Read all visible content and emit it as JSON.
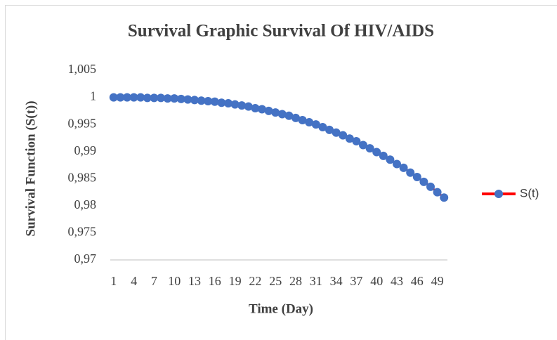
{
  "chart_data": {
    "type": "line",
    "title": "Survival Graphic Survival Of HIV/AIDS",
    "x_label": "Time (Day)",
    "y_label": "Survival Function (S(t))",
    "categories": [
      1,
      null,
      null,
      4,
      null,
      null,
      7,
      null,
      null,
      10,
      null,
      null,
      13,
      null,
      null,
      16,
      null,
      null,
      19,
      null,
      null,
      22,
      null,
      null,
      25,
      null,
      null,
      28,
      null,
      null,
      31,
      null,
      null,
      34,
      null,
      null,
      37,
      null,
      null,
      40,
      null,
      null,
      43,
      null,
      null,
      46,
      null,
      null,
      49,
      null
    ],
    "series": [
      {
        "name": "S(t)",
        "color": "#4472c4",
        "line_color": "#ff0000",
        "values": [
          1.0,
          1.0,
          1.0,
          1.0,
          1.0,
          0.9999,
          0.9999,
          0.9999,
          0.9998,
          0.9998,
          0.9997,
          0.9996,
          0.9995,
          0.9994,
          0.9993,
          0.9992,
          0.999,
          0.9989,
          0.9987,
          0.9985,
          0.9983,
          0.998,
          0.9978,
          0.9975,
          0.9972,
          0.9969,
          0.9966,
          0.9962,
          0.9958,
          0.9954,
          0.995,
          0.9945,
          0.994,
          0.9935,
          0.993,
          0.9924,
          0.9919,
          0.9912,
          0.9906,
          0.9899,
          0.9892,
          0.9885,
          0.9877,
          0.987,
          0.9861,
          0.9853,
          0.9844,
          0.9835,
          0.9825,
          0.9815
        ]
      }
    ],
    "ylim": [
      0.97,
      1.005
    ],
    "yticks": [
      {
        "value": 0.97,
        "label": "0,97"
      },
      {
        "value": 0.975,
        "label": "0,975"
      },
      {
        "value": 0.98,
        "label": "0,98"
      },
      {
        "value": 0.985,
        "label": "0,985"
      },
      {
        "value": 0.99,
        "label": "0,99"
      },
      {
        "value": 0.995,
        "label": "0,995"
      },
      1,
      {
        "value": 1.005,
        "label": "1,005"
      }
    ],
    "grid": false,
    "legend": "right"
  }
}
